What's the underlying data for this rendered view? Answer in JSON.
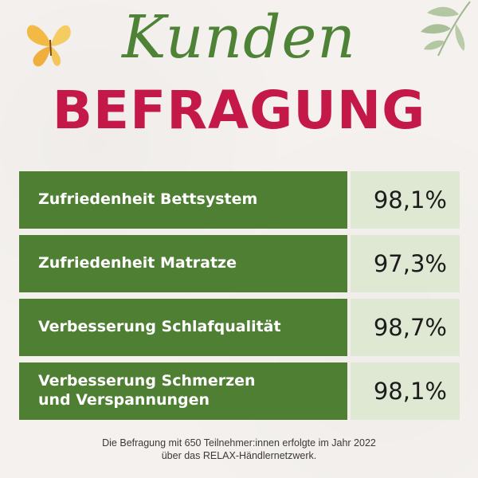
{
  "title": {
    "script": "Kunden",
    "main": "BEFRAGUNG"
  },
  "results": [
    {
      "label": "Zufriedenheit Bettsystem",
      "value": "98,1%"
    },
    {
      "label": "Zufriedenheit Matratze",
      "value": "97,3%"
    },
    {
      "label": "Verbesserung Schlafqualität",
      "value": "98,7%"
    },
    {
      "label": "Verbesserung Schmerzen\nund Verspannungen",
      "value": "98,1%"
    }
  ],
  "footnote": {
    "line1": "Die Befragung mit 650 Teilnehmer:innen erfolgte im Jahr 2022",
    "line2": "über das RELAX-Händlernetzwerk."
  },
  "colors": {
    "script_green": "#4e8236",
    "title_red": "#c41848",
    "label_bg": "#4f7f33",
    "value_bg": "#dfe8d3"
  },
  "decorations": {
    "top_left": "butterfly-icon",
    "top_right": "leaves-icon"
  }
}
